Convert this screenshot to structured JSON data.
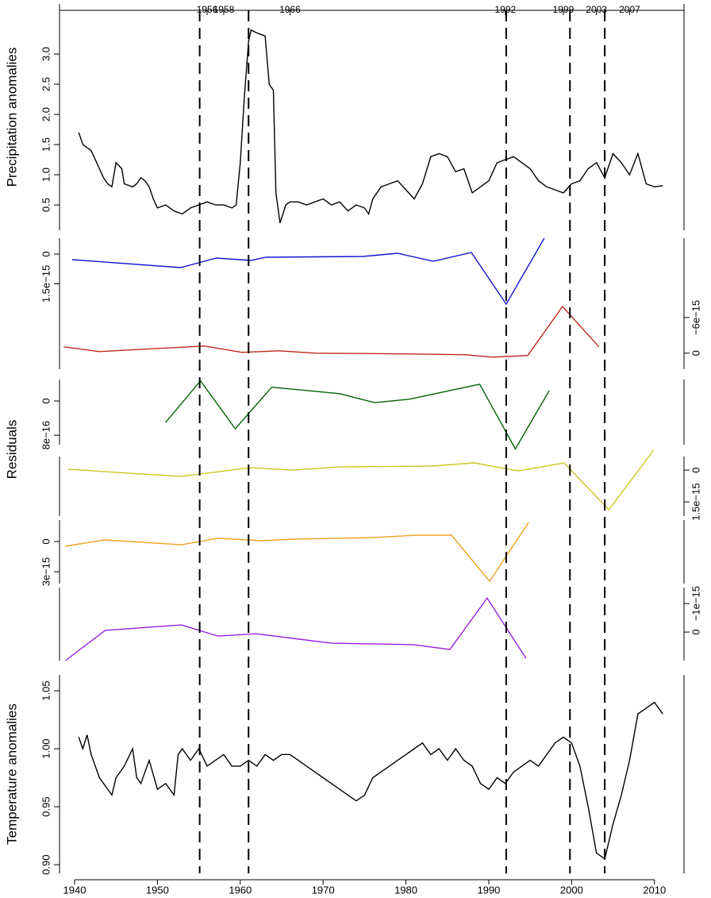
{
  "chart_data": [
    {
      "type": "line",
      "ylabel": "Precipitation anomalies",
      "color": "#000000",
      "side": "left",
      "xlim": [
        1938.18,
        2013.57
      ],
      "ylim": [
        0.08,
        3.83
      ],
      "yticks": [
        0.5,
        {
          "value": 1,
          "label": "1.0"
        },
        1.5,
        {
          "value": 2,
          "label": "2.0"
        },
        2.5,
        {
          "value": 3,
          "label": "3.0"
        }
      ],
      "top_ticks": [
        1956,
        1958,
        1966,
        1992,
        1999,
        2003,
        2007
      ],
      "top_tick_colors": [
        "#e8101a",
        "#2020c8",
        "#2020c8",
        "#2020c8",
        "#e8101a",
        "#2020c8",
        "#2020c8"
      ],
      "vlines": [
        1955.1,
        1961,
        1992.1,
        1999.8,
        2004
      ],
      "x": [
        1940.5,
        1941,
        1941.5,
        1942,
        1942.5,
        1943,
        1943.5,
        1944,
        1944.5,
        1945,
        1945.7,
        1946,
        1947,
        1947.5,
        1948,
        1948.5,
        1949,
        1949.5,
        1950,
        1951,
        1952,
        1953,
        1954,
        1955,
        1956,
        1957,
        1958,
        1959,
        1959.5,
        1960,
        1960.5,
        1961,
        1961.3,
        1962,
        1963,
        1963.5,
        1964,
        1964.3,
        1964.8,
        1965.5,
        1966,
        1967,
        1968,
        1969,
        1970,
        1971,
        1972,
        1973,
        1974,
        1975,
        1975.5,
        1976,
        1977,
        1978,
        1979,
        1980,
        1981,
        1982,
        1983,
        1984,
        1985,
        1986,
        1987,
        1988,
        1989,
        1990,
        1991,
        1992,
        1993,
        1994,
        1995,
        1996,
        1997,
        1998,
        1999,
        2000,
        2001,
        2002,
        2003,
        2004,
        2005,
        2006,
        2007,
        2008,
        2009,
        2010,
        2011
      ],
      "values": [
        1.7,
        1.5,
        1.45,
        1.4,
        1.25,
        1.1,
        0.95,
        0.85,
        0.8,
        1.2,
        1.1,
        0.85,
        0.8,
        0.85,
        0.95,
        0.9,
        0.8,
        0.6,
        0.45,
        0.5,
        0.4,
        0.35,
        0.45,
        0.5,
        0.55,
        0.5,
        0.5,
        0.45,
        0.5,
        1.2,
        2.3,
        3.2,
        3.4,
        3.35,
        3.3,
        2.5,
        2.4,
        0.7,
        0.2,
        0.5,
        0.55,
        0.55,
        0.5,
        0.55,
        0.6,
        0.5,
        0.55,
        0.4,
        0.5,
        0.45,
        0.35,
        0.6,
        0.8,
        0.85,
        0.9,
        0.75,
        0.6,
        0.85,
        1.3,
        1.35,
        1.3,
        1.05,
        1.1,
        0.7,
        0.8,
        0.9,
        1.2,
        1.25,
        1.3,
        1.2,
        1.1,
        0.9,
        0.8,
        0.75,
        0.7,
        0.85,
        0.9,
        1.1,
        1.2,
        0.95,
        1.35,
        1.2,
        1.0,
        1.35,
        0.85,
        0.8,
        0.82
      ]
    },
    {
      "type": "line",
      "color": "#1414d0",
      "side": "left",
      "xlim": [
        1938.18,
        2013.57
      ],
      "ylim": [
        2.6e-15,
        -8e-16
      ],
      "yticks": [
        0,
        {
          "value": 1.5e-15,
          "label": "1.5e−15"
        }
      ],
      "x": [
        1939.7,
        1952.8,
        1957.1,
        1961.3,
        1963.1,
        1974.8,
        1979,
        1983.3,
        1987.9,
        1992.1,
        1996.7
      ],
      "values": [
        2.8e-16,
        6.8e-16,
        2e-16,
        3.2e-16,
        1.6e-16,
        1.2e-16,
        -4e-17,
        3.6e-16,
        -8e-17,
        2.52e-15,
        -8e-16
      ]
    },
    {
      "type": "line",
      "color": "#c0281c",
      "side": "right",
      "xlim": [
        1938.18,
        2013.57
      ],
      "ylim": [
        2.7e-15,
        -8e-15
      ],
      "yticks": [
        0,
        {
          "value": -6e-15,
          "label": "−6e−15"
        }
      ],
      "x": [
        1938.7,
        1943,
        1955.7,
        1960.2,
        1964.7,
        1969.1,
        1980.8,
        1987.3,
        1990.4,
        1994.7,
        1998.9,
        2003.3
      ],
      "values": [
        -1.07e-15,
        -2.7e-16,
        -1.2e-15,
        -1.3e-16,
        -4e-16,
        0,
        1.3e-16,
        2.7e-16,
        6.7e-16,
        4e-16,
        -7.87e-15,
        -1.07e-15
      ]
    },
    {
      "type": "line",
      "color": "#006400",
      "side": "left",
      "xlim": [
        1938.18,
        2013.57
      ],
      "ylim": [
        1.02e-15,
        -5e-16
      ],
      "yticks": [
        0,
        {
          "value": 8e-16,
          "label": "8e−16"
        }
      ],
      "x": [
        1951,
        1955.2,
        1959.4,
        1963.8,
        1972,
        1976.2,
        1980.4,
        1988.9,
        1993.2,
        1997.3
      ],
      "values": [
        5e-16,
        -4.7e-16,
        6.5e-16,
        -3.2e-16,
        -1.7e-16,
        4e-17,
        -4e-17,
        -3.9e-16,
        1.12e-15,
        -2.4e-16
      ]
    },
    {
      "type": "line",
      "color": "#c8c822",
      "side": "right",
      "xlim": [
        1938.18,
        2013.57
      ],
      "ylim": [
        2.17e-15,
        -6.4e-16
      ],
      "yticks": [
        0,
        {
          "value": 1.5e-15,
          "label": "1.5e−15"
        }
      ],
      "x": [
        1939.2,
        1952.8,
        1961.2,
        1966.2,
        1972,
        1983.2,
        1988.2,
        1993.6,
        1999.1,
        2004.5,
        2009.9
      ],
      "values": [
        -4e-17,
        3e-16,
        -1.1e-16,
        0,
        -1.5e-16,
        -1.9e-16,
        -3.4e-16,
        4e-17,
        -3.4e-16,
        1.87e-15,
        -9.4e-16
      ]
    },
    {
      "type": "line",
      "color": "#f0a020",
      "side": "left",
      "xlim": [
        1938.18,
        2013.57
      ],
      "ylim": [
        4.18e-15,
        -2.13e-15
      ],
      "yticks": [
        0,
        {
          "value": 3e-15,
          "label": "3e−15"
        }
      ],
      "x": [
        1938.9,
        1943.6,
        1952.9,
        1957.3,
        1962.6,
        1966.6,
        1976,
        1981.3,
        1985.5,
        1990.1,
        1994.8
      ],
      "values": [
        4.7e-16,
        -1.6e-16,
        3.2e-16,
        -3.2e-16,
        -8e-17,
        -2.4e-16,
        -3.9e-16,
        -6.3e-16,
        -6.3e-16,
        3.95e-15,
        -1.89e-15
      ]
    },
    {
      "type": "line",
      "color": "#9a20e0",
      "side": "right",
      "xlim": [
        1938.18,
        2013.57
      ],
      "ylim": [
        1e-15,
        -1.56e-15
      ],
      "yticks": [
        0,
        {
          "value": -1e-15,
          "label": "−1e−15"
        }
      ],
      "x": [
        1938.9,
        1943.7,
        1952.9,
        1957.3,
        1961.9,
        1971,
        1980.9,
        1985.3,
        1989.8,
        1994.5
      ],
      "values": [
        1e-15,
        -6e-17,
        -2.5e-16,
        1.4e-16,
        6e-17,
        3.9e-16,
        4.4e-16,
        6.1e-16,
        -1.19e-15,
        9.2e-16
      ]
    },
    {
      "type": "line",
      "ylabel": "Temperature anomalies",
      "color": "#000000",
      "side": "left",
      "xlim": [
        1938.18,
        2013.57
      ],
      "ylim": [
        0.8925,
        1.0637
      ],
      "yticks": [
        {
          "value": 0.9,
          "label": "0.90"
        },
        0.95,
        {
          "value": 1,
          "label": "1.00"
        },
        1.05
      ],
      "xticks": [
        1940,
        1950,
        1960,
        1970,
        1980,
        1990,
        2000,
        2010
      ],
      "x": [
        1940.5,
        1941,
        1941.5,
        1942,
        1943,
        1944,
        1944.5,
        1945,
        1946,
        1947,
        1947.5,
        1948,
        1949,
        1950,
        1951,
        1952,
        1952.5,
        1953,
        1954,
        1955,
        1956,
        1957,
        1958,
        1959,
        1960,
        1961,
        1962,
        1963,
        1964,
        1965,
        1966,
        1967,
        1968,
        1969,
        1970,
        1971,
        1972,
        1973,
        1974,
        1975,
        1976,
        1977,
        1978,
        1979,
        1980,
        1981,
        1982,
        1983,
        1984,
        1985,
        1986,
        1987,
        1988,
        1989,
        1990,
        1991,
        1992,
        1993,
        1994,
        1995,
        1996,
        1997,
        1998,
        1999,
        2000,
        2001,
        2002,
        2003,
        2004,
        2005,
        2006,
        2007,
        2008,
        2009,
        2010,
        2011
      ],
      "values": [
        1.01,
        1.0,
        1.012,
        0.995,
        0.975,
        0.965,
        0.96,
        0.975,
        0.985,
        1.0,
        0.975,
        0.97,
        0.99,
        0.965,
        0.97,
        0.96,
        0.995,
        1.0,
        0.99,
        1.0,
        0.985,
        0.99,
        0.995,
        0.985,
        0.985,
        0.99,
        0.985,
        0.995,
        0.99,
        0.995,
        0.995,
        0.99,
        0.985,
        0.98,
        0.975,
        0.97,
        0.965,
        0.96,
        0.955,
        0.96,
        0.975,
        0.98,
        0.985,
        0.99,
        0.995,
        1.0,
        1.005,
        0.995,
        1.0,
        0.99,
        1.0,
        0.99,
        0.985,
        0.97,
        0.965,
        0.975,
        0.97,
        0.98,
        0.985,
        0.99,
        0.985,
        0.995,
        1.005,
        1.01,
        1.005,
        0.985,
        0.95,
        0.91,
        0.905,
        0.935,
        0.96,
        0.99,
        1.03,
        1.035,
        1.04,
        1.03
      ]
    }
  ],
  "residuals_label": "Residuals"
}
